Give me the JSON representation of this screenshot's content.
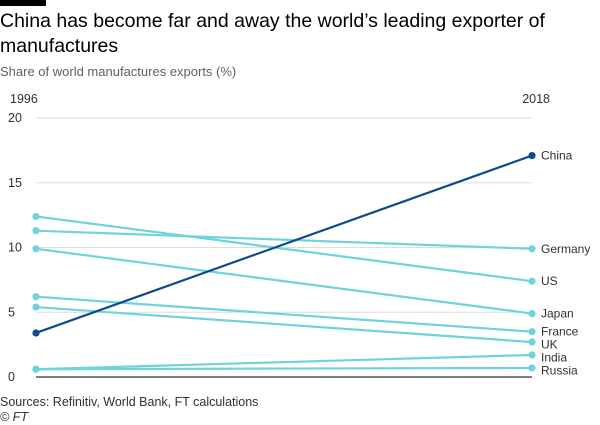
{
  "header": {
    "title": "China has become far and away the world’s leading exporter of manufactures",
    "subtitle": "Share of world manufactures exports (%)"
  },
  "footer": {
    "source": "Sources: Refinitiv, World Bank, FT calculations",
    "copyright": "© FT"
  },
  "colors": {
    "highlight": "#0f4a8a",
    "series": "#6fd3dc",
    "grid": "#e0dcd8",
    "axis": "#000000",
    "label": "#33302e"
  },
  "chart_data": {
    "type": "line",
    "subtype": "slope",
    "title": "China has become far and away the world’s leading exporter of manufactures",
    "subtitle": "Share of world manufactures exports (%)",
    "x": [
      "1996",
      "2018"
    ],
    "ylim": [
      0,
      20
    ],
    "yticks": [
      "0",
      "5",
      "10",
      "15",
      "20"
    ],
    "grid": true,
    "series": [
      {
        "name": "China",
        "values": [
          3.4,
          17.1
        ],
        "highlight": true
      },
      {
        "name": "Germany",
        "values": [
          11.3,
          9.9
        ]
      },
      {
        "name": "US",
        "values": [
          12.4,
          7.4
        ]
      },
      {
        "name": "Japan",
        "values": [
          9.9,
          4.9
        ]
      },
      {
        "name": "France",
        "values": [
          6.2,
          3.5
        ]
      },
      {
        "name": "UK",
        "values": [
          5.4,
          2.7
        ]
      },
      {
        "name": "India",
        "values": [
          0.6,
          1.7
        ]
      },
      {
        "name": "Russia",
        "values": [
          0.6,
          0.7
        ]
      }
    ]
  }
}
